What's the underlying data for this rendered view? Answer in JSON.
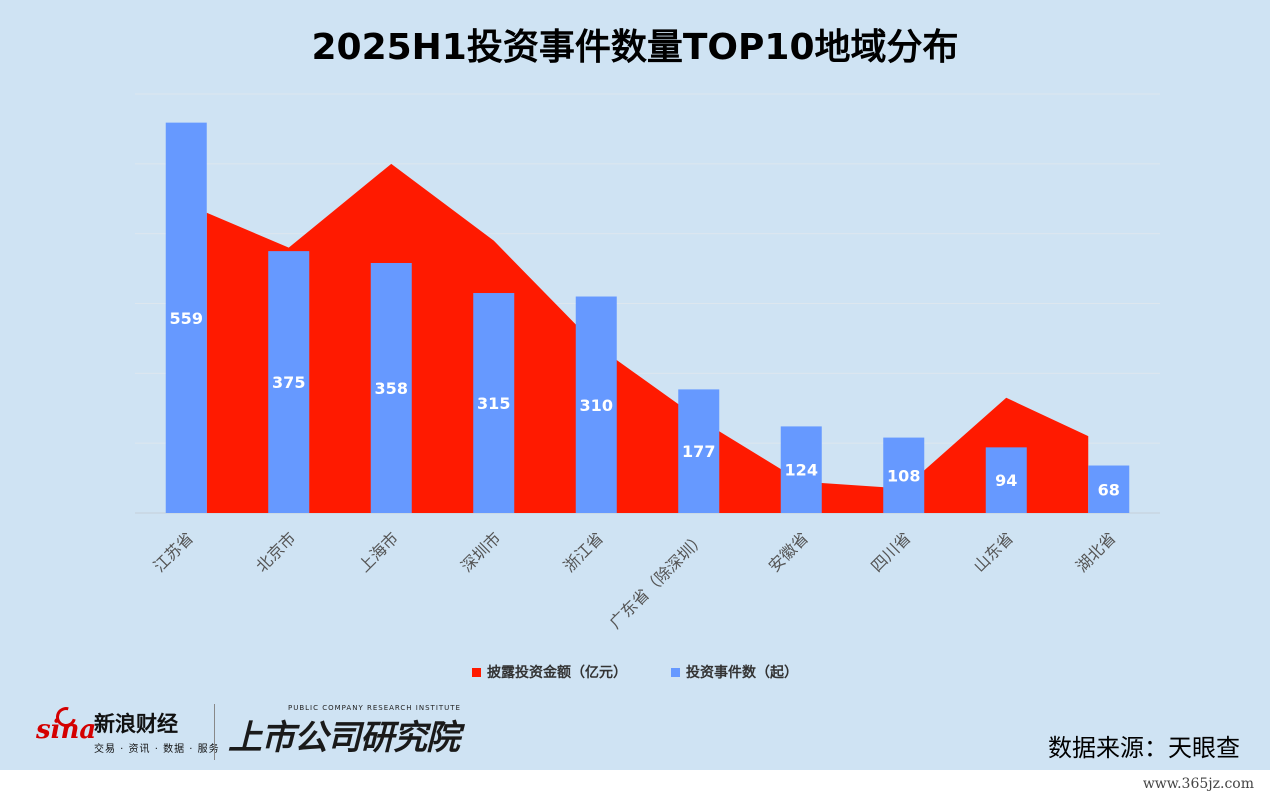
{
  "title": "2025H1投资事件数量TOP10地域分布",
  "chart_data": {
    "type": "bar",
    "categories": [
      "江苏省",
      "北京市",
      "上海市",
      "深圳市",
      "浙江省",
      "广东省（除深圳）",
      "安徽省",
      "四川省",
      "山东省",
      "湖北省"
    ],
    "series": [
      {
        "name": "披露投资金额（亿元）",
        "type": "area",
        "color": "#ff1a00",
        "values": [
          430,
          380,
          500,
          390,
          240,
          135,
          45,
          35,
          165,
          110
        ]
      },
      {
        "name": "投资事件数（起）",
        "type": "bar",
        "color": "#6699ff",
        "values": [
          559,
          375,
          358,
          315,
          310,
          177,
          124,
          108,
          94,
          68
        ]
      }
    ],
    "ylim": [
      0,
      600
    ],
    "area_ylim": [
      0,
      600
    ],
    "grid": true,
    "legend_position": "bottom"
  },
  "footer": {
    "brand_logo": "sina",
    "brand_name": "新浪财经",
    "brand_sub": "交易 · 资讯 · 数据 · 服务",
    "institute_sub": "PUBLIC COMPANY RESEARCH INSTITUTE",
    "institute_name": "上市公司研究院",
    "source": "数据来源：天眼查"
  },
  "watermark": "www.365jz.com"
}
